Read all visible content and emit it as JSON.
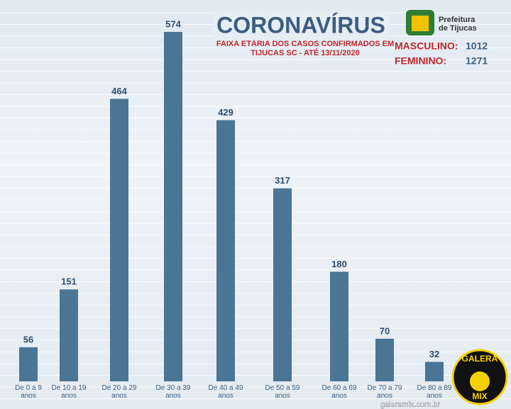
{
  "chart_data": {
    "type": "bar",
    "title": "CORONAVÍRUS",
    "subtitle": "FAIXA ETÁRIA DOS CASOS CONFIRMADOS EM TIJUCAS SC - ATÉ 13/11/2020",
    "categories": [
      "De 0 a 9 anos",
      "De 10 a 19 anos",
      "De 20 a 29 anos",
      "De 30 a 39 anos",
      "De 40 a 49 anos",
      "De 50 a 59 anos",
      "De 60 a 69 anos",
      "De 70 a 79 anos",
      "De 80 a 89 anos"
    ],
    "values": [
      56,
      151,
      464,
      574,
      429,
      317,
      180,
      70,
      32
    ],
    "color": "#4a7595",
    "totals": [
      {
        "label": "MASCULINO:",
        "value": 1012
      },
      {
        "label": "FEMININO:",
        "value": 1271
      }
    ]
  },
  "header": {
    "org": "Prefeitura de Tijucas"
  },
  "footer": {
    "site": "galeramix.com.br",
    "logo_top": "GALERA",
    "logo_bottom": "MIX"
  }
}
